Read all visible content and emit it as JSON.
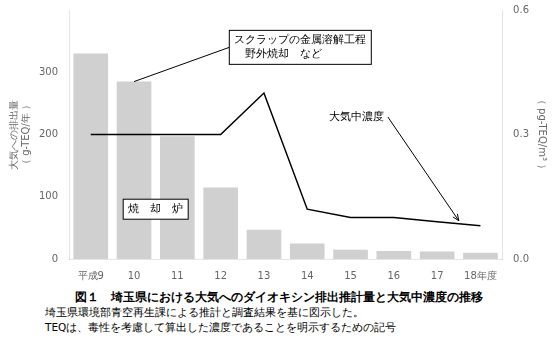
{
  "chart_data": {
    "type": "bar",
    "title": "図１　埼玉県における大気へのダイオキシン排出推計量と大気中濃度の推移",
    "captions": [
      "埼玉県環境部青空再生課による推計と調査結果を基に図示した。",
      "TEQは、毒性を考慮して算出した濃度であることを明示するための記号"
    ],
    "ylabel": "大気への排出量\n（ g-TEQ/年 ）",
    "y2label": "（ pg-TEQ/m³ ）",
    "categories": [
      "平成9",
      "10",
      "11",
      "12",
      "13",
      "14",
      "15",
      "16",
      "17",
      "18年度"
    ],
    "series": [
      {
        "type": "bar",
        "color": "#d0d0d0",
        "values": [
          330,
          285,
          197,
          115,
          47,
          25,
          15,
          13,
          12,
          10
        ]
      },
      {
        "type": "line",
        "axis": "y2",
        "color": "#000000",
        "marker": "none",
        "values": [
          0.3,
          0.3,
          0.3,
          0.3,
          0.4,
          0.12,
          0.1,
          0.1,
          0.09,
          0.08
        ]
      }
    ],
    "ylim": [
      0,
      400
    ],
    "yticks": [
      0,
      100,
      200,
      300
    ],
    "y2lim": [
      0.0,
      0.6
    ],
    "y2ticks": [
      {
        "value": 0.0,
        "label": "0.0"
      },
      0.3,
      0.6
    ],
    "annotations": [
      "スクラップの金属溶解工程\n　野外焼却　など",
      "焼　却　炉",
      "大気中濃度"
    ],
    "grid": false
  }
}
